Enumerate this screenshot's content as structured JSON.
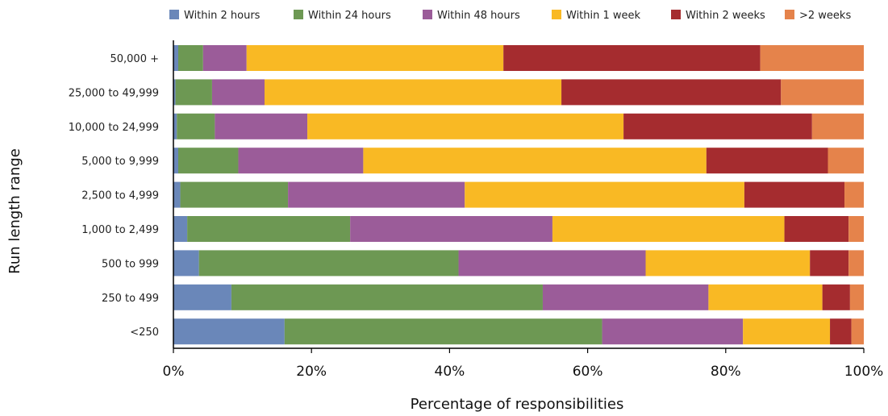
{
  "chart_data": {
    "type": "bar",
    "orientation": "horizontal",
    "stacked": true,
    "xlabel": "Percentage of responsibilities",
    "ylabel": "Run length range",
    "xlim": [
      0,
      100
    ],
    "x_ticks": [
      "0%",
      "20%",
      "40%",
      "60%",
      "80%",
      "100%"
    ],
    "grid": false,
    "legend_position": "top",
    "categories": [
      "50,000 +",
      "25,000 to 49,999",
      "10,000 to 24,999",
      "5,000 to 9,999",
      "2,500 to 4,999",
      "1,000 to 2,499",
      "500 to 999",
      "250 to 499",
      "<250"
    ],
    "series": [
      {
        "name": "Within 2 hours",
        "color": "#6a87b9",
        "values": [
          0.7,
          0.3,
          0.5,
          0.7,
          1.0,
          2.0,
          3.7,
          8.4,
          16.1
        ]
      },
      {
        "name": "Within 24 hours",
        "color": "#6d9853",
        "values": [
          3.6,
          5.3,
          5.5,
          8.7,
          15.6,
          23.6,
          37.6,
          45.1,
          46.0
        ]
      },
      {
        "name": "Within 48 hours",
        "color": "#9b5c99",
        "values": [
          6.3,
          7.6,
          13.4,
          18.1,
          25.6,
          29.3,
          27.1,
          24.0,
          20.4
        ]
      },
      {
        "name": "Within 1 week",
        "color": "#f9b924",
        "values": [
          37.2,
          43.0,
          45.8,
          49.7,
          40.5,
          33.6,
          23.8,
          16.5,
          12.6
        ]
      },
      {
        "name": "Within 2 weeks",
        "color": "#a52c2f",
        "values": [
          37.2,
          31.8,
          27.3,
          17.6,
          14.5,
          9.3,
          5.6,
          4.0,
          3.1
        ]
      },
      {
        "name": ">2 weeks",
        "color": "#e5834b",
        "values": [
          15.0,
          12.0,
          7.5,
          5.2,
          2.8,
          2.2,
          2.2,
          2.0,
          1.8
        ]
      }
    ]
  }
}
